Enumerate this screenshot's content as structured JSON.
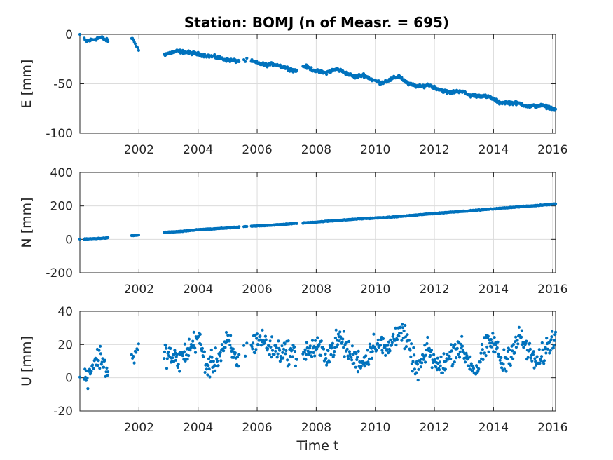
{
  "figure_title": "Station: BOMJ (n of Measr. = 695)",
  "marker_color": "#0072bd",
  "x_tick_labels": [
    "2002",
    "2004",
    "2006",
    "2008",
    "2010",
    "2012",
    "2014",
    "2016"
  ],
  "chart_data": [
    {
      "type": "scatter",
      "title": "Station: BOMJ (n of Measr. = 695)",
      "ylabel": "E [mm]",
      "xlabel": "",
      "xlim": [
        2000.0,
        2016.1
      ],
      "ylim": [
        -100,
        0
      ],
      "xticks": [
        2002,
        2004,
        2006,
        2008,
        2010,
        2012,
        2014,
        2016
      ],
      "yticks": [
        0,
        -50,
        -100
      ],
      "ytick_labels": [
        "0",
        "-50",
        "-100"
      ],
      "grid": true,
      "trend": [
        [
          2000.0,
          0
        ],
        [
          2000.2,
          -7
        ],
        [
          2000.5,
          -5
        ],
        [
          2000.7,
          -3
        ],
        [
          2000.9,
          -6
        ],
        [
          2001.8,
          -5
        ],
        [
          2002.0,
          -17
        ],
        [
          2002.9,
          -20
        ],
        [
          2003.3,
          -17
        ],
        [
          2003.8,
          -19
        ],
        [
          2004.2,
          -21
        ],
        [
          2004.6,
          -23
        ],
        [
          2005.0,
          -26
        ],
        [
          2005.4,
          -27
        ],
        [
          2005.7,
          -26
        ],
        [
          2006.0,
          -29
        ],
        [
          2006.3,
          -31
        ],
        [
          2006.6,
          -30
        ],
        [
          2007.0,
          -34
        ],
        [
          2007.3,
          -37
        ],
        [
          2007.6,
          -32
        ],
        [
          2008.0,
          -37
        ],
        [
          2008.3,
          -39
        ],
        [
          2008.7,
          -35
        ],
        [
          2009.0,
          -39
        ],
        [
          2009.3,
          -43
        ],
        [
          2009.6,
          -41
        ],
        [
          2009.9,
          -46
        ],
        [
          2010.2,
          -49
        ],
        [
          2010.5,
          -46
        ],
        [
          2010.8,
          -42
        ],
        [
          2011.1,
          -50
        ],
        [
          2011.5,
          -53
        ],
        [
          2011.8,
          -51
        ],
        [
          2012.2,
          -56
        ],
        [
          2012.5,
          -59
        ],
        [
          2012.9,
          -57
        ],
        [
          2013.2,
          -62
        ],
        [
          2013.6,
          -62
        ],
        [
          2013.9,
          -64
        ],
        [
          2014.2,
          -69
        ],
        [
          2014.5,
          -69
        ],
        [
          2014.9,
          -70
        ],
        [
          2015.2,
          -73
        ],
        [
          2015.6,
          -72
        ],
        [
          2015.9,
          -74
        ],
        [
          2016.1,
          -76
        ]
      ],
      "noise": 1.2
    },
    {
      "type": "scatter",
      "ylabel": "N [mm]",
      "xlabel": "",
      "xlim": [
        2000.0,
        2016.1
      ],
      "ylim": [
        -200,
        400
      ],
      "xticks": [
        2002,
        2004,
        2006,
        2008,
        2010,
        2012,
        2014,
        2016
      ],
      "yticks": [
        400,
        200,
        0,
        -200
      ],
      "ytick_labels": [
        "400",
        "200",
        "0",
        "-200"
      ],
      "grid": true,
      "trend": [
        [
          2000.0,
          0
        ],
        [
          2000.9,
          8
        ],
        [
          2001.8,
          22
        ],
        [
          2002.0,
          26
        ],
        [
          2002.9,
          42
        ],
        [
          2003.5,
          48
        ],
        [
          2004.0,
          58
        ],
        [
          2004.5,
          62
        ],
        [
          2005.3,
          72
        ],
        [
          2005.7,
          77
        ],
        [
          2006.5,
          85
        ],
        [
          2007.3,
          95
        ],
        [
          2007.6,
          98
        ],
        [
          2008.5,
          110
        ],
        [
          2009.5,
          123
        ],
        [
          2010.5,
          132
        ],
        [
          2011.5,
          147
        ],
        [
          2012.5,
          162
        ],
        [
          2013.5,
          175
        ],
        [
          2014.5,
          190
        ],
        [
          2015.5,
          203
        ],
        [
          2016.1,
          212
        ]
      ],
      "noise": 1.5
    },
    {
      "type": "scatter",
      "ylabel": "U [mm]",
      "xlabel": "Time t",
      "xlim": [
        2000.0,
        2016.1
      ],
      "ylim": [
        -20,
        40
      ],
      "xticks": [
        2002,
        2004,
        2006,
        2008,
        2010,
        2012,
        2014,
        2016
      ],
      "yticks": [
        40,
        20,
        0,
        -20
      ],
      "ytick_labels": [
        "40",
        "20",
        "0",
        "-20"
      ],
      "grid": true,
      "trend": [
        [
          2000.0,
          0
        ],
        [
          2000.2,
          0
        ],
        [
          2000.5,
          10
        ],
        [
          2000.7,
          13
        ],
        [
          2000.9,
          5
        ],
        [
          2001.8,
          12
        ],
        [
          2002.0,
          16
        ],
        [
          2002.9,
          15
        ],
        [
          2003.3,
          10
        ],
        [
          2003.7,
          17
        ],
        [
          2004.0,
          25
        ],
        [
          2004.3,
          6
        ],
        [
          2004.6,
          10
        ],
        [
          2005.0,
          22
        ],
        [
          2005.3,
          10
        ],
        [
          2005.5,
          14
        ],
        [
          2005.7,
          18
        ],
        [
          2006.1,
          24
        ],
        [
          2006.5,
          17
        ],
        [
          2007.0,
          16
        ],
        [
          2007.3,
          14
        ],
        [
          2007.6,
          15
        ],
        [
          2008.0,
          18
        ],
        [
          2008.4,
          14
        ],
        [
          2008.8,
          24
        ],
        [
          2009.2,
          13
        ],
        [
          2009.6,
          9
        ],
        [
          2010.0,
          22
        ],
        [
          2010.4,
          16
        ],
        [
          2010.8,
          30
        ],
        [
          2011.1,
          20
        ],
        [
          2011.4,
          4
        ],
        [
          2011.8,
          17
        ],
        [
          2012.1,
          6
        ],
        [
          2012.4,
          10
        ],
        [
          2012.8,
          20
        ],
        [
          2013.1,
          12
        ],
        [
          2013.4,
          4
        ],
        [
          2013.7,
          17
        ],
        [
          2014.0,
          22
        ],
        [
          2014.3,
          8
        ],
        [
          2014.6,
          16
        ],
        [
          2014.9,
          25
        ],
        [
          2015.2,
          15
        ],
        [
          2015.5,
          8
        ],
        [
          2015.8,
          18
        ],
        [
          2016.1,
          26
        ]
      ],
      "noise": 5
    }
  ]
}
